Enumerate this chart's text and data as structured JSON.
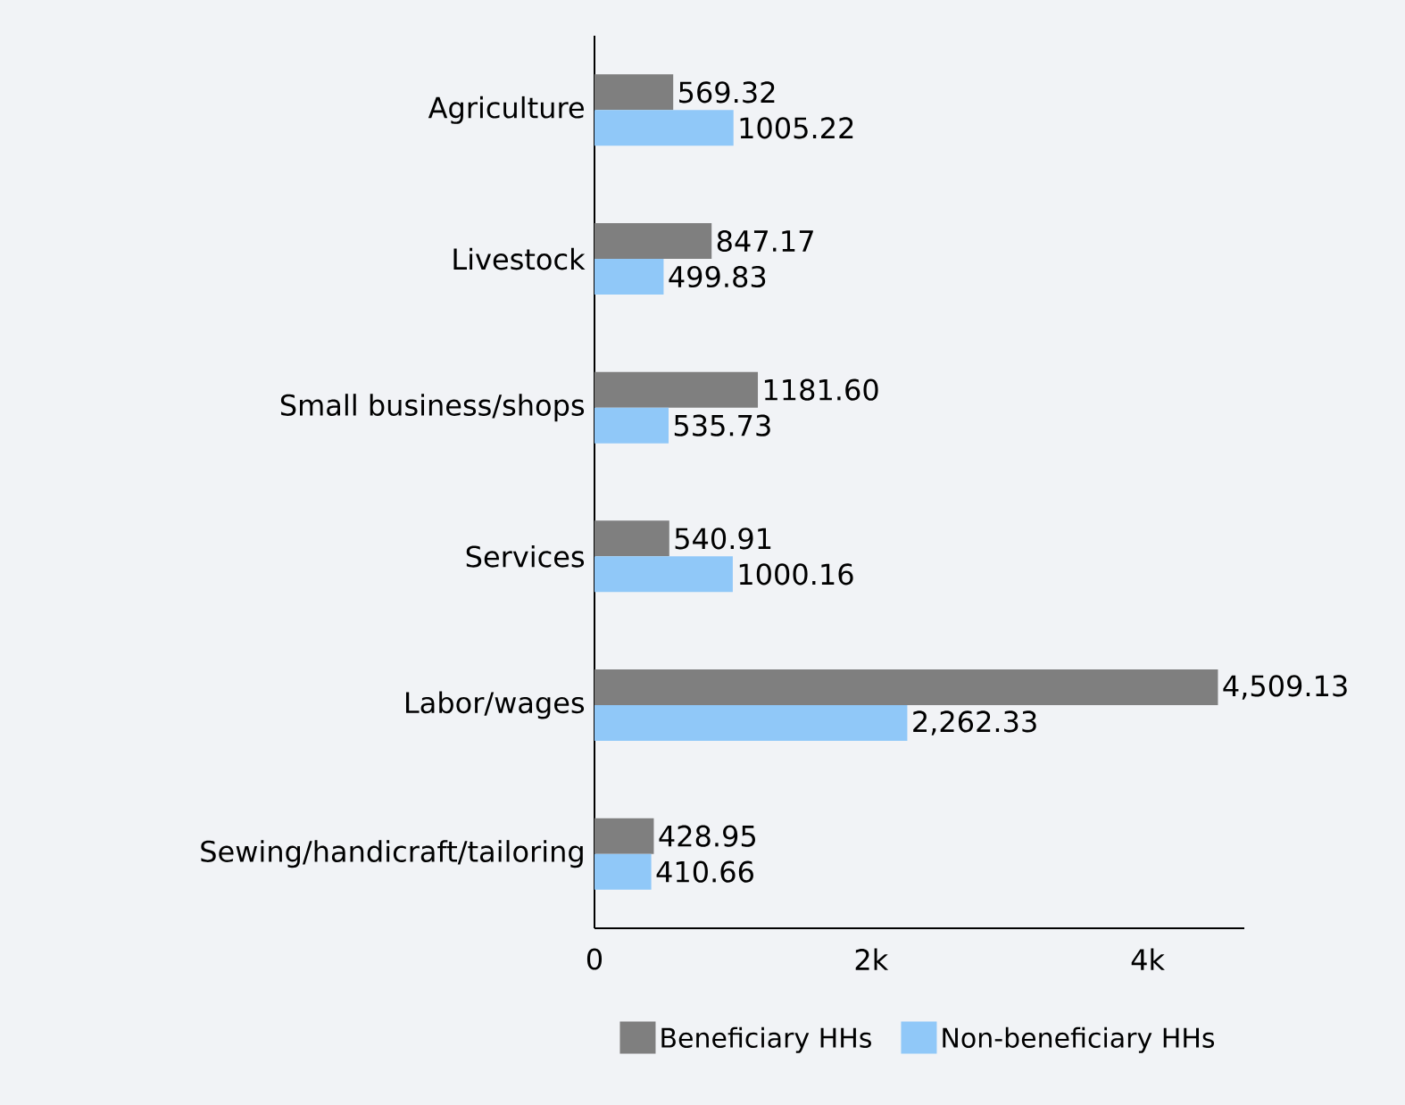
{
  "chart_data": {
    "type": "bar",
    "orientation": "horizontal",
    "categories": [
      "Agriculture",
      "Livestock",
      "Small business/shops",
      "Services",
      "Labor/wages",
      "Sewing/handicraft/tailoring"
    ],
    "series": [
      {
        "name": "Beneficiary HHs",
        "color": "#7f7f7f",
        "values": [
          569.32,
          847.17,
          1181.6,
          540.91,
          4509.13,
          428.95
        ],
        "value_labels": [
          "569.32",
          "847.17",
          "1181.60",
          "540.91",
          "4,509.13",
          "428.95"
        ]
      },
      {
        "name": "Non-beneficiary HHs",
        "color": "#90c8f8",
        "values": [
          1005.22,
          499.83,
          535.73,
          1000.16,
          2262.33,
          410.66
        ],
        "value_labels": [
          "1005.22",
          "499.83",
          "535.73",
          "1000.16",
          "2,262.33",
          "410.66"
        ]
      }
    ],
    "xlim": [
      0,
      4700
    ],
    "xticks": [
      {
        "value": 0,
        "label": "0"
      },
      {
        "value": 2000,
        "label": "2k"
      },
      {
        "value": 4000,
        "label": "4k"
      }
    ],
    "grid": false,
    "legend": "bottom"
  }
}
